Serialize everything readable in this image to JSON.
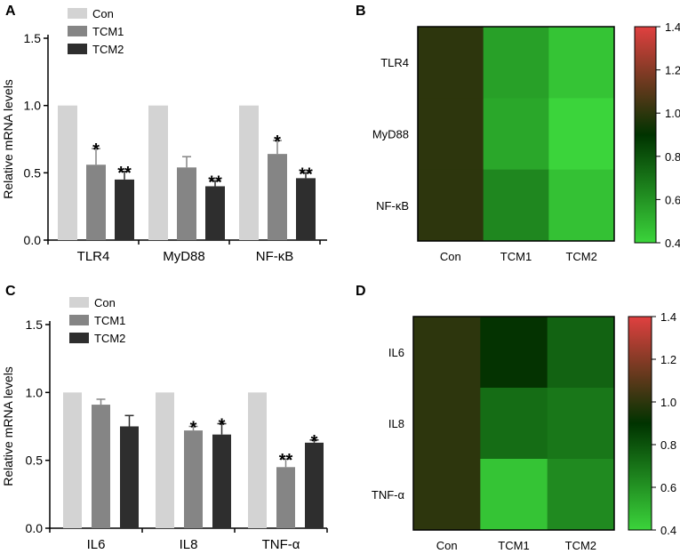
{
  "colors": {
    "con": "#d3d3d3",
    "tcm1": "#858585",
    "tcm2": "#2e2e2e",
    "axis": "#000000",
    "heat_low": "#3bd43b",
    "heat_mid": "#003300",
    "heat_high": "#e04040"
  },
  "chart_data": [
    {
      "panel": "A",
      "type": "bar",
      "ylabel": "Relative mRNA levels",
      "ylim": [
        0,
        1.5
      ],
      "yticks": [
        "0.0",
        "0.5",
        "1.0",
        "1.5"
      ],
      "categories": [
        "TLR4",
        "MyD88",
        "NF-κB"
      ],
      "legend": [
        "Con",
        "TCM1",
        "TCM2"
      ],
      "series": [
        {
          "name": "Con",
          "values": [
            1.0,
            1.0,
            1.0
          ],
          "errors": [
            0,
            0,
            0
          ],
          "sig": [
            "",
            "",
            ""
          ]
        },
        {
          "name": "TCM1",
          "values": [
            0.56,
            0.54,
            0.64
          ],
          "errors": [
            0.12,
            0.08,
            0.1
          ],
          "sig": [
            "*",
            "",
            "*"
          ]
        },
        {
          "name": "TCM2",
          "values": [
            0.45,
            0.4,
            0.46
          ],
          "errors": [
            0.06,
            0.04,
            0.04
          ],
          "sig": [
            "**",
            "**",
            "**"
          ]
        }
      ]
    },
    {
      "panel": "B",
      "type": "heatmap",
      "rows": [
        "TLR4",
        "MyD88",
        "NF-κB"
      ],
      "cols": [
        "Con",
        "TCM1",
        "TCM2"
      ],
      "values": [
        [
          1.0,
          0.56,
          0.45
        ],
        [
          1.0,
          0.54,
          0.4
        ],
        [
          1.0,
          0.64,
          0.46
        ]
      ],
      "range": [
        0.4,
        1.4
      ],
      "colorbar_ticks": [
        "1.4",
        "1.2",
        "1.0",
        "0.8",
        "0.6",
        "0.4"
      ]
    },
    {
      "panel": "C",
      "type": "bar",
      "ylabel": "Relative mRNA levels",
      "ylim": [
        0,
        1.5
      ],
      "yticks": [
        "0.0",
        "0.5",
        "1.0",
        "1.5"
      ],
      "categories": [
        "IL6",
        "IL8",
        "TNF-α"
      ],
      "legend": [
        "Con",
        "TCM1",
        "TCM2"
      ],
      "series": [
        {
          "name": "Con",
          "values": [
            1.0,
            1.0,
            1.0
          ],
          "errors": [
            0,
            0,
            0
          ],
          "sig": [
            "",
            "",
            ""
          ]
        },
        {
          "name": "TCM1",
          "values": [
            0.91,
            0.72,
            0.45
          ],
          "errors": [
            0.04,
            0.03,
            0.06
          ],
          "sig": [
            "",
            "*",
            "**"
          ]
        },
        {
          "name": "TCM2",
          "values": [
            0.75,
            0.69,
            0.63
          ],
          "errors": [
            0.08,
            0.08,
            0.02
          ],
          "sig": [
            "",
            "*",
            "*"
          ]
        }
      ]
    },
    {
      "panel": "D",
      "type": "heatmap",
      "rows": [
        "IL6",
        "IL8",
        "TNF-α"
      ],
      "cols": [
        "Con",
        "TCM1",
        "TCM2"
      ],
      "values": [
        [
          1.0,
          0.91,
          0.75
        ],
        [
          1.0,
          0.72,
          0.69
        ],
        [
          1.0,
          0.45,
          0.63
        ]
      ],
      "range": [
        0.4,
        1.4
      ],
      "colorbar_ticks": [
        "1.4",
        "1.2",
        "1.0",
        "0.8",
        "0.6",
        "0.4"
      ]
    }
  ]
}
